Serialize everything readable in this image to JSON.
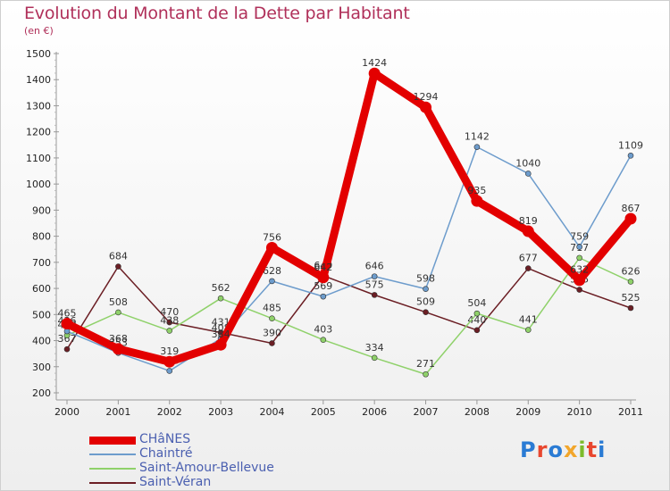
{
  "title": "Evolution du Montant de la Dette par Habitant",
  "subtitle": "(en €)",
  "logo": {
    "text": "Proxiti",
    "colors": [
      "#2a7bd4",
      "#e8472f",
      "#2a7bd4",
      "#f2a62b",
      "#7dbb2c",
      "#e8472f",
      "#2a7bd4"
    ]
  },
  "chart_data": {
    "type": "line",
    "title": "Evolution du Montant de la Dette par Habitant",
    "ylabel": "(en €)",
    "xlabel": "",
    "ylim": [
      200,
      1500
    ],
    "yticks": [
      200,
      300,
      400,
      500,
      600,
      700,
      800,
      900,
      1000,
      1100,
      1200,
      1300,
      1400,
      1500
    ],
    "x": [
      "2000",
      "2001",
      "2002",
      "2003",
      "2004",
      "2005",
      "2006",
      "2007",
      "2008",
      "2009",
      "2010",
      "2011"
    ],
    "grid": false,
    "legend_position": "bottom-left",
    "series": [
      {
        "name": "Saint-Véran",
        "color": "#6b1e24",
        "values": [
          367,
          684,
          470,
          431,
          390,
          649,
          575,
          509,
          440,
          677,
          595,
          525
        ]
      },
      {
        "name": "Saint-Amour-Bellevue",
        "color": "#8fd16a",
        "values": [
          420,
          508,
          438,
          562,
          485,
          403,
          334,
          271,
          504,
          441,
          717,
          626
        ]
      },
      {
        "name": "Chaintré",
        "color": "#6d9ccc",
        "values": [
          436,
          353,
          284,
          408,
          628,
          569,
          646,
          598,
          1142,
          1040,
          759,
          1109
        ]
      },
      {
        "name": "CHâNES",
        "color": "#e30000",
        "values": [
          465,
          368,
          319,
          384,
          756,
          642,
          1424,
          1294,
          935,
          819,
          632,
          867
        ]
      }
    ]
  }
}
